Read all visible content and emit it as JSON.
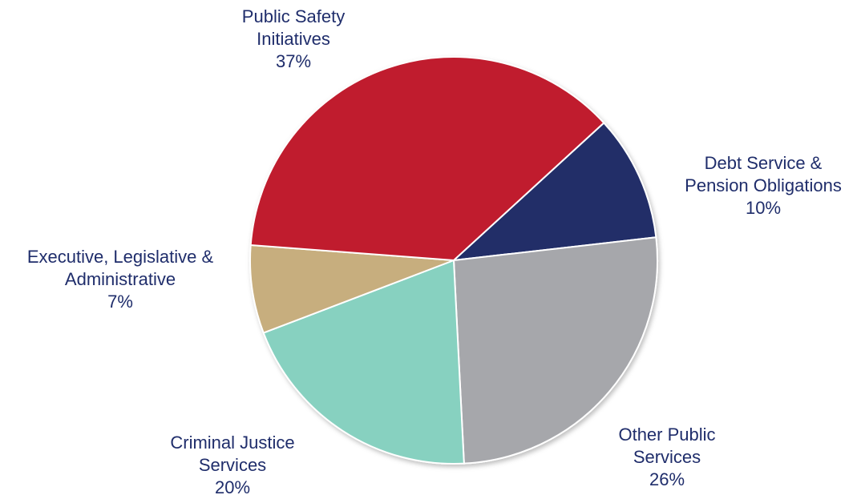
{
  "chart_data": {
    "type": "pie",
    "slices": [
      {
        "label_lines": [
          "Public Safety",
          "Initiatives"
        ],
        "value": 37,
        "value_text": "37%",
        "color": "#c01f2e"
      },
      {
        "label_lines": [
          "Debt Service &",
          "Pension Obligations"
        ],
        "value": 10,
        "value_text": "10%",
        "color": "#212f68"
      },
      {
        "label_lines": [
          "Other Public",
          "Services"
        ],
        "value": 26,
        "value_text": "26%",
        "color": "#a6a7ab"
      },
      {
        "label_lines": [
          "Criminal Justice",
          "Services"
        ],
        "value": 20,
        "value_text": "20%",
        "color": "#87d1c0"
      },
      {
        "label_lines": [
          "Executive, Legislative &",
          "Administrative"
        ],
        "value": 7,
        "value_text": "7%",
        "color": "#c7ae7e"
      }
    ]
  }
}
